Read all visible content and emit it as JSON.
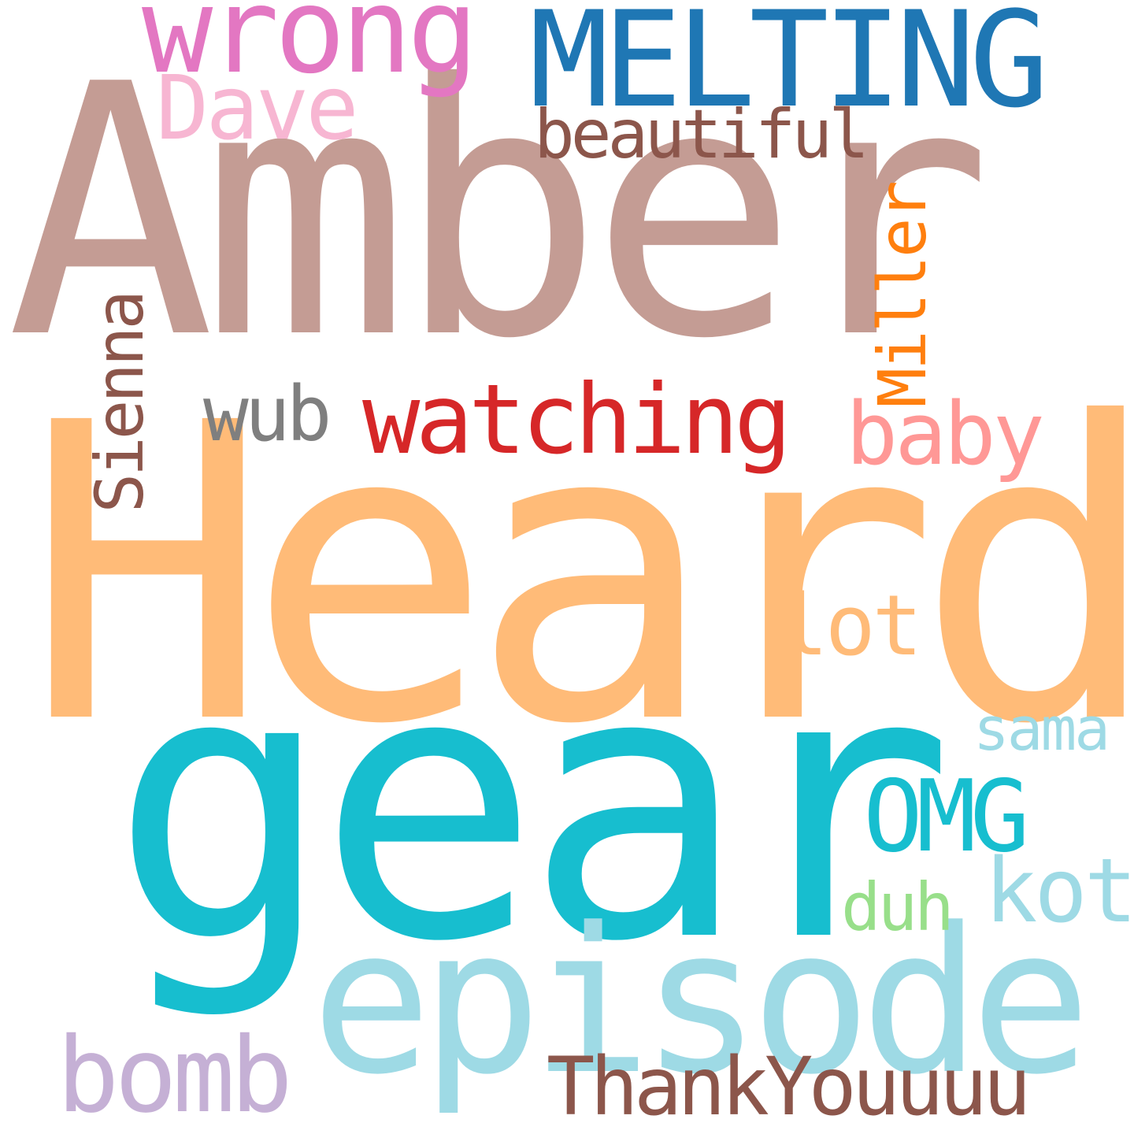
{
  "words": [
    {
      "id": "amber",
      "text": "Amber",
      "color": "#c49c94"
    },
    {
      "id": "heard",
      "text": "Heard",
      "color": "#ffbb78"
    },
    {
      "id": "gear",
      "text": "gear",
      "color": "#17becf"
    },
    {
      "id": "episode",
      "text": "episode",
      "color": "#9edae5"
    },
    {
      "id": "melting",
      "text": "MELTING",
      "color": "#1f77b4"
    },
    {
      "id": "wrong",
      "text": "wrong",
      "color": "#e377c2"
    },
    {
      "id": "dave",
      "text": "Dave",
      "color": "#f7b6d2"
    },
    {
      "id": "beautiful",
      "text": "beautiful",
      "color": "#8c564b"
    },
    {
      "id": "miller",
      "text": "Miller",
      "color": "#ff7f0e"
    },
    {
      "id": "sienna",
      "text": "Sienna",
      "color": "#8c564b"
    },
    {
      "id": "wub",
      "text": "wub",
      "color": "#7f7f7f"
    },
    {
      "id": "watching",
      "text": "watching",
      "color": "#d62728"
    },
    {
      "id": "baby",
      "text": "baby",
      "color": "#ff9896"
    },
    {
      "id": "lot",
      "text": "lot",
      "color": "#ffbb78"
    },
    {
      "id": "sama",
      "text": "sama",
      "color": "#9edae5"
    },
    {
      "id": "omg",
      "text": "OMG",
      "color": "#17becf"
    },
    {
      "id": "kot",
      "text": "kot",
      "color": "#9edae5"
    },
    {
      "id": "duh",
      "text": "duh",
      "color": "#98df8a"
    },
    {
      "id": "bomb",
      "text": "bomb",
      "color": "#c5b0d5"
    },
    {
      "id": "thankyouuuu",
      "text": "ThankYouuuu",
      "color": "#8c564b"
    }
  ]
}
